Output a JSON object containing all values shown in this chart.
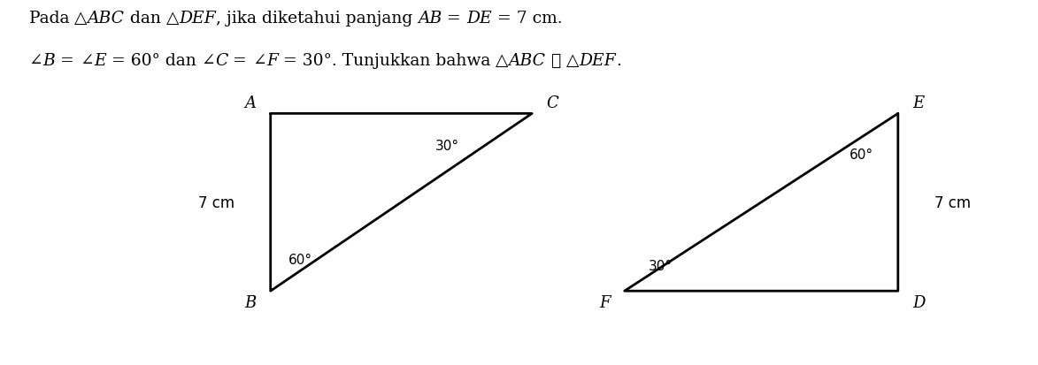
{
  "bg_color": "#ffffff",
  "line_color": "#000000",
  "text_color": "#000000",
  "figsize": [
    11.73,
    4.14
  ],
  "dpi": 100,
  "tri1": {
    "A": [
      0.175,
      0.75
    ],
    "B": [
      0.175,
      0.12
    ],
    "C": [
      0.5,
      0.75
    ],
    "label_A": "A",
    "label_B": "B",
    "label_C": "C",
    "side_AB_label": "7 cm",
    "angle_B_label": "60°",
    "angle_C_label": "30°"
  },
  "tri2": {
    "E": [
      0.955,
      0.75
    ],
    "D": [
      0.955,
      0.12
    ],
    "F": [
      0.615,
      0.12
    ],
    "label_E": "E",
    "label_D": "D",
    "label_F": "F",
    "side_DE_label": "7 cm",
    "angle_E_label": "60°",
    "angle_F_label": "30°"
  },
  "title_parts": [
    {
      "text": "Pada ",
      "style": "normal",
      "font": "serif"
    },
    {
      "text": "△",
      "style": "normal",
      "font": "serif"
    },
    {
      "text": "ABC",
      "style": "italic",
      "font": "serif"
    },
    {
      "text": " dan ",
      "style": "normal",
      "font": "serif"
    },
    {
      "text": "△",
      "style": "normal",
      "font": "serif"
    },
    {
      "text": "DEF",
      "style": "italic",
      "font": "serif"
    },
    {
      "text": ", jika diketahui panjang ",
      "style": "normal",
      "font": "serif"
    },
    {
      "text": "AB",
      "style": "italic",
      "font": "serif"
    },
    {
      "text": " = ",
      "style": "normal",
      "font": "serif"
    },
    {
      "text": "DE",
      "style": "italic",
      "font": "serif"
    },
    {
      "text": " = 7 cm.",
      "style": "normal",
      "font": "serif"
    }
  ],
  "title2_parts": [
    {
      "text": "∠",
      "style": "normal",
      "font": "serif"
    },
    {
      "text": "B",
      "style": "italic",
      "font": "serif"
    },
    {
      "text": " = ",
      "style": "normal",
      "font": "serif"
    },
    {
      "text": "∠",
      "style": "normal",
      "font": "serif"
    },
    {
      "text": "E",
      "style": "italic",
      "font": "serif"
    },
    {
      "text": " = 60° dan ",
      "style": "normal",
      "font": "serif"
    },
    {
      "text": "∠",
      "style": "normal",
      "font": "serif"
    },
    {
      "text": "C",
      "style": "italic",
      "font": "serif"
    },
    {
      "text": " = ",
      "style": "normal",
      "font": "serif"
    },
    {
      "text": "∠",
      "style": "normal",
      "font": "serif"
    },
    {
      "text": "F",
      "style": "italic",
      "font": "serif"
    },
    {
      "text": " = 30°. Tunjukkan bahwa ",
      "style": "normal",
      "font": "serif"
    },
    {
      "text": "△",
      "style": "normal",
      "font": "serif"
    },
    {
      "text": "ABC",
      "style": "italic",
      "font": "serif"
    },
    {
      "text": " ≅ ",
      "style": "normal",
      "font": "serif"
    },
    {
      "text": "△",
      "style": "normal",
      "font": "serif"
    },
    {
      "text": "DEF",
      "style": "italic",
      "font": "serif"
    },
    {
      "text": ".",
      "style": "normal",
      "font": "serif"
    }
  ]
}
